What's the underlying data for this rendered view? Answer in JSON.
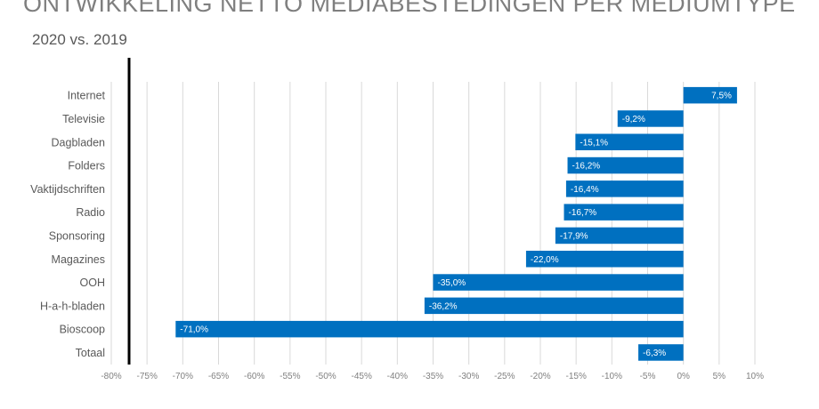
{
  "title": "ONTWIKKELING NETTO MEDIABESTEDINGEN PER MEDIUMTYPE",
  "subtitle": "2020 vs. 2019",
  "colors": {
    "bar": "#0070c0",
    "grid": "#d9d9d9",
    "text": "#595959",
    "axis_line": "#000000"
  },
  "chart_data": {
    "type": "bar",
    "orientation": "horizontal",
    "categories": [
      "Internet",
      "Televisie",
      "Dagbladen",
      "Folders",
      "Vaktijdschriften",
      "Radio",
      "Sponsoring",
      "Magazines",
      "OOH",
      "H-a-h-bladen",
      "Bioscoop",
      "Totaal"
    ],
    "values": [
      7.5,
      -9.2,
      -15.1,
      -16.2,
      -16.4,
      -16.7,
      -17.9,
      -22.0,
      -35.0,
      -36.2,
      -71.0,
      -6.3
    ],
    "data_labels": [
      "7,5%",
      "-9,2%",
      "-15,1%",
      "-16,2%",
      "-16,4%",
      "-16,7%",
      "-17,9%",
      "-22,0%",
      "-35,0%",
      "-36,2%",
      "-71,0%",
      "-6,3%"
    ],
    "xlim": [
      -80,
      10
    ],
    "xticks": [
      -80,
      -75,
      -70,
      -65,
      -60,
      -55,
      -50,
      -45,
      -40,
      -35,
      -30,
      -25,
      -20,
      -15,
      -10,
      -5,
      0,
      5,
      10
    ],
    "xtick_labels": [
      "-80%",
      "-75%",
      "-70%",
      "-65%",
      "-60%",
      "-55%",
      "-50%",
      "-45%",
      "-40%",
      "-35%",
      "-30%",
      "-25%",
      "-20%",
      "-15%",
      "-10%",
      "-5%",
      "0%",
      "5%",
      "10%"
    ],
    "grid": true,
    "legend": "none"
  }
}
